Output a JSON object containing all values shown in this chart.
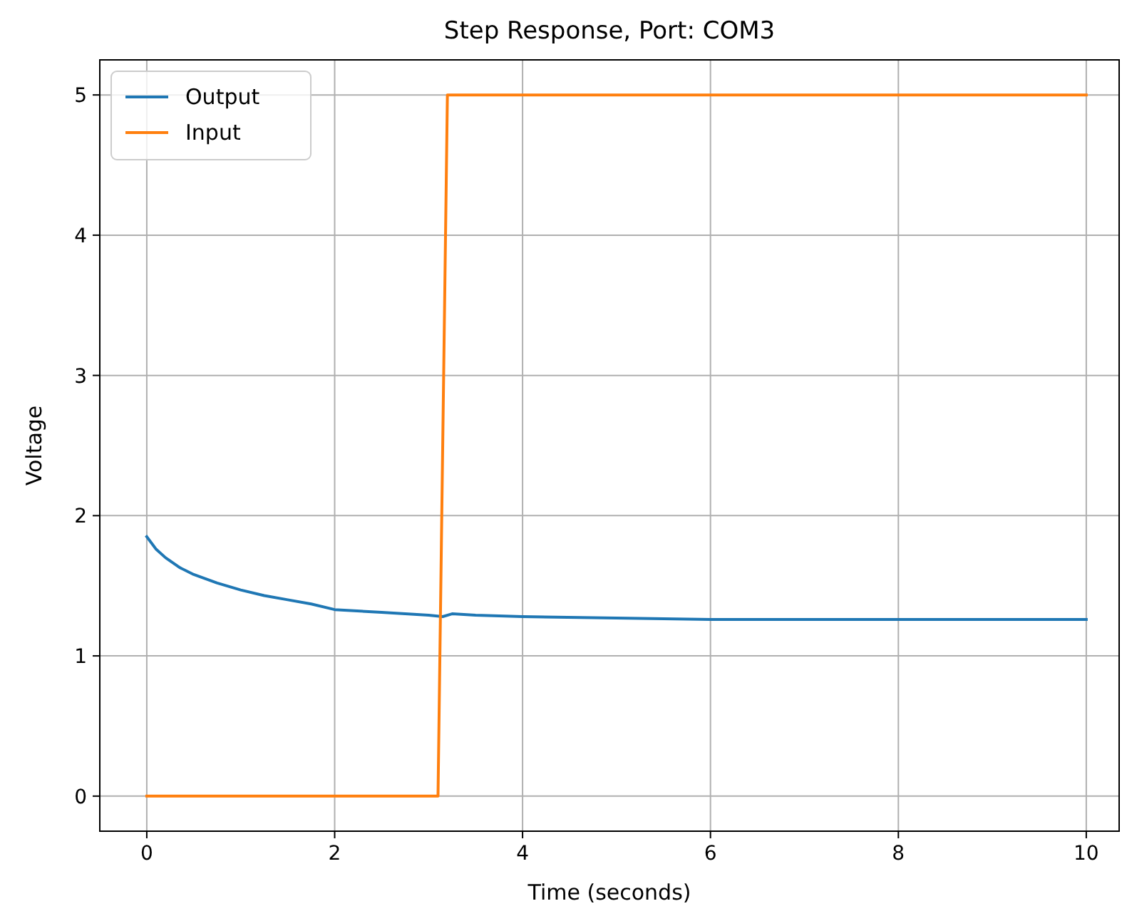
{
  "chart_data": {
    "type": "line",
    "title": "Step Response, Port: COM3",
    "xlabel": "Time (seconds)",
    "ylabel": "Voltage",
    "xlim": [
      -0.5,
      10.35
    ],
    "ylim": [
      -0.25,
      5.25
    ],
    "xticks": [
      0,
      2,
      4,
      6,
      8,
      10
    ],
    "yticks": [
      0,
      1,
      2,
      3,
      4,
      5
    ],
    "grid": true,
    "legend": "top left",
    "series": [
      {
        "name": "Output",
        "color": "#1f77b4",
        "x": [
          0,
          0.1,
          0.2,
          0.35,
          0.5,
          0.75,
          1,
          1.25,
          1.5,
          1.75,
          2,
          2.5,
          3,
          3.15,
          3.25,
          3.5,
          4,
          5,
          6,
          7,
          8,
          9,
          10
        ],
        "values": [
          1.85,
          1.76,
          1.7,
          1.63,
          1.58,
          1.52,
          1.47,
          1.43,
          1.4,
          1.37,
          1.33,
          1.31,
          1.29,
          1.28,
          1.3,
          1.29,
          1.28,
          1.27,
          1.26,
          1.26,
          1.26,
          1.26,
          1.26
        ]
      },
      {
        "name": "Input",
        "color": "#ff7f0e",
        "x": [
          0,
          3.1,
          3.2,
          10
        ],
        "values": [
          0,
          0,
          5,
          5
        ]
      }
    ]
  }
}
